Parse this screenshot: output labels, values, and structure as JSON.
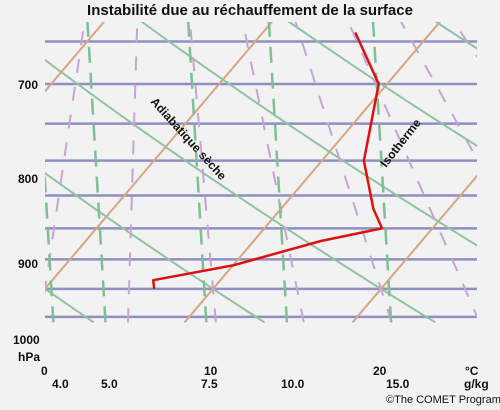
{
  "title": "Instabilité due au réchauffement de la surface",
  "pressure_unit": "hPa",
  "pressure_labels": [
    "700",
    "800",
    "900",
    "1000"
  ],
  "temperature_unit": "°C",
  "temperature_labels": [
    "0",
    "10",
    "20"
  ],
  "mixing_ratio_unit": "g/kg",
  "mixing_ratio_labels": [
    "4.0",
    "5.0",
    "7.5",
    "10.0",
    "15.0"
  ],
  "annotations": {
    "dry_adiabat": "Adiabatique sèche",
    "isotherm": "Isotherme"
  },
  "credit": "©The COMET Program",
  "colors": {
    "isobar": "#8f8fc3",
    "isotherm": "#d9a582",
    "dry_adiabat": "#8fc3a1",
    "moist_adiabat": "#c8a3d6",
    "mixing_ratio": "#7fbf95",
    "sounding": "#dd1111"
  },
  "chart_data": {
    "type": "line",
    "series": [
      {
        "points": [
          {
            "p": 640,
            "t": 5.5
          },
          {
            "p": 700,
            "t": 9.5
          },
          {
            "p": 800,
            "t": 12.5
          },
          {
            "p": 870,
            "t": 15.5
          },
          {
            "p": 900,
            "t": 17.0
          },
          {
            "p": 920,
            "t": 14.0
          },
          {
            "p": 960,
            "t": 10.0
          },
          {
            "p": 985,
            "t": 6.0
          },
          {
            "p": 1000,
            "t": 6.5
          }
        ]
      }
    ]
  }
}
